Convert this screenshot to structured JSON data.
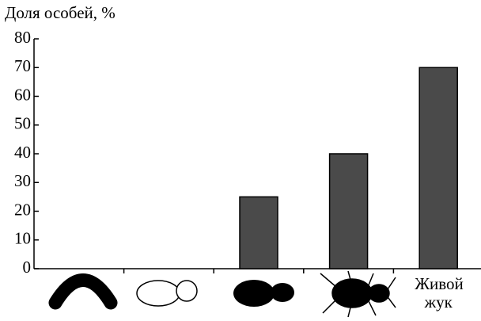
{
  "chart_data": {
    "type": "bar",
    "y_axis_label": "Доля особей, %",
    "categories": [
      null,
      null,
      null,
      null,
      "Живой жук"
    ],
    "values": [
      0,
      0,
      25,
      40,
      70
    ],
    "color": "#4a4a4a",
    "ylim": [
      0,
      80
    ],
    "yticks": [
      0,
      10,
      20,
      30,
      40,
      50,
      60,
      70,
      80
    ]
  }
}
